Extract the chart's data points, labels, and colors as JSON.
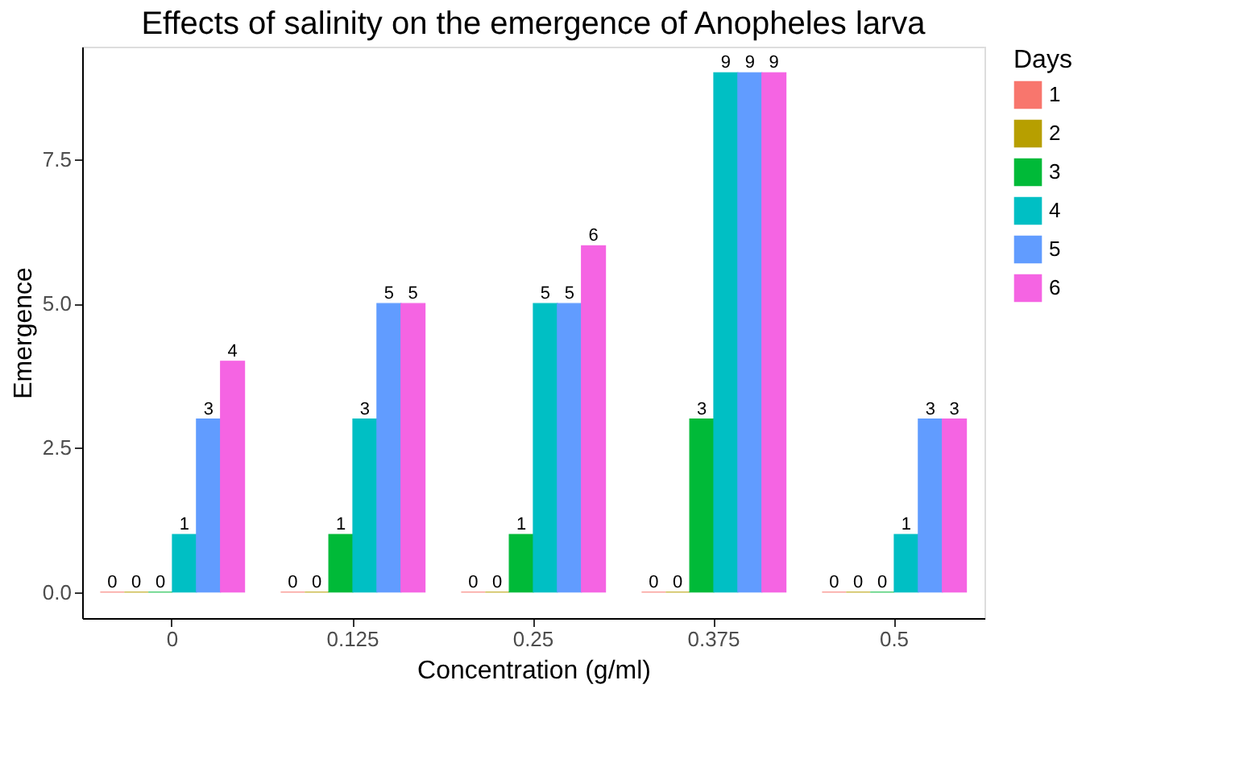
{
  "chart_data": {
    "type": "bar",
    "title": "Effects of salinity on the emergence of Anopheles larva",
    "xlabel": "Concentration (g/ml)",
    "ylabel": "Emergence",
    "legend_title": "Days",
    "categories": [
      "0",
      "0.125",
      "0.25",
      "0.375",
      "0.5"
    ],
    "series": [
      {
        "name": "1",
        "color": "#f8766d",
        "values": [
          0,
          0,
          0,
          0,
          0
        ]
      },
      {
        "name": "2",
        "color": "#b79f00",
        "values": [
          0,
          0,
          0,
          0,
          0
        ]
      },
      {
        "name": "3",
        "color": "#00ba38",
        "values": [
          0,
          1,
          1,
          3,
          0
        ]
      },
      {
        "name": "4",
        "color": "#00bfc4",
        "values": [
          1,
          3,
          5,
          9,
          1
        ]
      },
      {
        "name": "5",
        "color": "#619cff",
        "values": [
          3,
          5,
          5,
          9,
          3
        ]
      },
      {
        "name": "6",
        "color": "#f564e3",
        "values": [
          4,
          5,
          6,
          9,
          3
        ]
      }
    ],
    "ylim": [
      -0.45,
      9.45
    ],
    "yticks": [
      {
        "value": 0,
        "label": "0.0"
      },
      {
        "value": 2.5,
        "label": "2.5"
      },
      {
        "value": 5,
        "label": "5.0"
      },
      {
        "value": 7.5,
        "label": "7.5"
      }
    ],
    "data_labels": true,
    "grid": false,
    "legend": "right"
  }
}
